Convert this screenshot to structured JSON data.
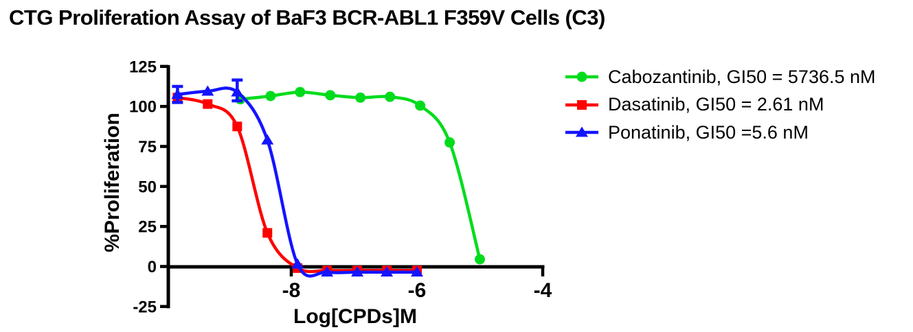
{
  "chart_data": {
    "type": "line",
    "title": "CTG Proliferation Assay of BaF3 BCR-ABL1 F359V Cells (C3)",
    "xlabel": "Log[CPDs]M",
    "ylabel": "%Proliferation",
    "xlim": [
      -10,
      -4
    ],
    "ylim": [
      -25,
      125
    ],
    "x_ticks": [
      -8,
      -6,
      -4
    ],
    "y_ticks": [
      125,
      100,
      75,
      50,
      25,
      0,
      -25
    ],
    "grid": false,
    "legend_position": "right",
    "axis_color": "#000000",
    "background": "#ffffff",
    "series": [
      {
        "name": "Cabozantinib, GI50 = 5736.5 nM",
        "drug": "Cabozantinib",
        "gi50": "5736.5 nM",
        "color": "#00dc1c",
        "marker": "circle",
        "x": [
          -8.81,
          -8.33,
          -7.86,
          -7.38,
          -6.9,
          -6.43,
          -5.95,
          -5.48,
          -5.0
        ],
        "y": [
          104.5,
          106.5,
          109,
          107,
          105.5,
          106,
          100.5,
          77.5,
          4.5
        ],
        "error_bars": []
      },
      {
        "name": "Dasatinib, GI50 = 2.61 nM",
        "drug": "Dasatinib",
        "gi50": "2.61 nM",
        "color": "#ff0000",
        "marker": "square",
        "x": [
          -9.81,
          -9.33,
          -8.86,
          -8.38,
          -7.9,
          -7.43,
          -6.95,
          -6.48,
          -6.0
        ],
        "y": [
          105.5,
          101.5,
          87.5,
          21,
          -1,
          -2.5,
          -2.5,
          -2.5,
          -2.5
        ],
        "error_bars": []
      },
      {
        "name": "Ponatinib, GI50 =5.6 nM",
        "drug": "Ponatinib",
        "gi50": "5.6 nM",
        "color": "#1414ff",
        "marker": "triangle",
        "x": [
          -9.81,
          -9.33,
          -8.86,
          -8.38,
          -7.9,
          -7.43,
          -6.95,
          -6.48,
          -6.0
        ],
        "y": [
          107.5,
          109.5,
          109,
          79,
          1.5,
          -3.5,
          -3.5,
          -3.5,
          -3.5
        ],
        "error_bars": [
          {
            "x": -9.81,
            "y": 107.5,
            "plus": 5,
            "minus": 5
          },
          {
            "x": -8.86,
            "y": 109,
            "plus": 7.5,
            "minus": 5.5
          }
        ]
      }
    ]
  }
}
